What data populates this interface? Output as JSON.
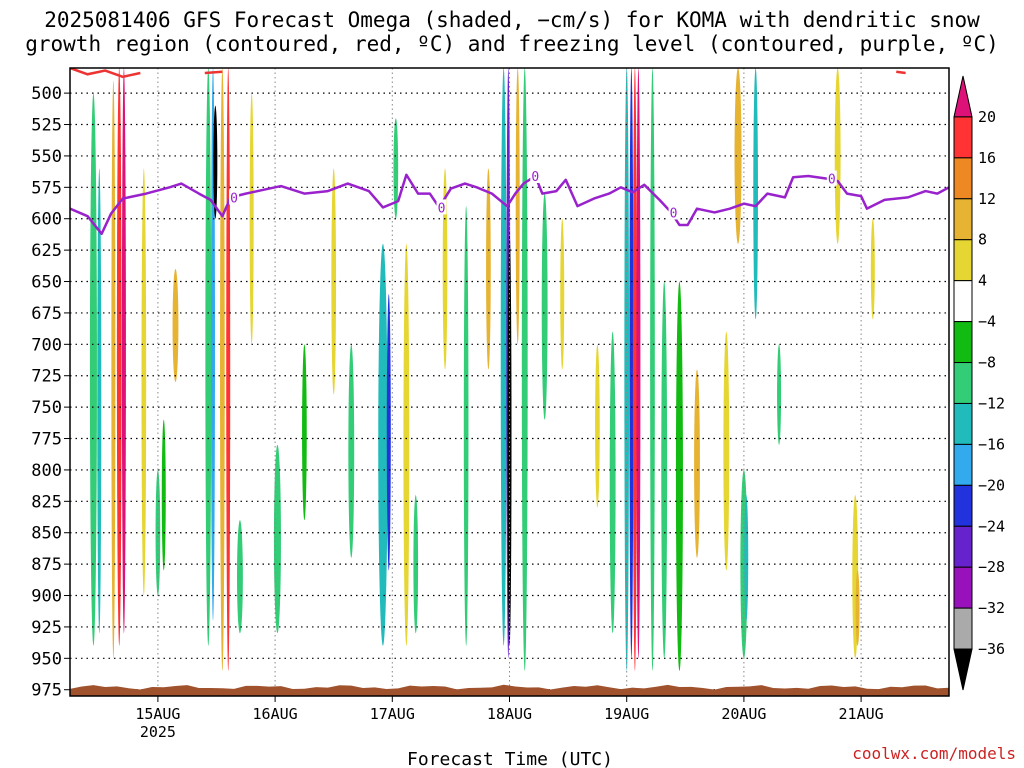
{
  "title": {
    "line1": "2025081406 GFS Forecast Omega (shaded, −cm/s) for KOMA with dendritic snow",
    "line2": "growth region (contoured, red, ºC) and freezing level (contoured, purple, ºC)"
  },
  "credit": "coolwx.com/models",
  "chart_data": {
    "type": "heatmap",
    "xlabel": "Forecast Time (UTC)",
    "ylabel": "",
    "x_ticks": [
      "15AUG",
      "16AUG",
      "17AUG",
      "18AUG",
      "19AUG",
      "20AUG",
      "21AUG"
    ],
    "x_tick_sublabel": "2025",
    "x_range_days": [
      14.25,
      21.75
    ],
    "y_ticks": [
      500,
      525,
      550,
      575,
      600,
      625,
      650,
      675,
      700,
      725,
      750,
      775,
      800,
      825,
      850,
      875,
      900,
      925,
      950,
      975
    ],
    "y_range_hpa": [
      480,
      980
    ],
    "grid": true,
    "colorbar": {
      "labels": [
        "20",
        "16",
        "12",
        "8",
        "4",
        "−4",
        "−8",
        "−12",
        "−16",
        "−20",
        "−24",
        "−28",
        "−32",
        "−36"
      ],
      "colors": [
        "#dd1177",
        "#ff3333",
        "#ee8822",
        "#e6b333",
        "#e6d633",
        "#ffffff",
        "#11bb11",
        "#33cc77",
        "#22bbbb",
        "#33aaee",
        "#2233dd",
        "#6622cc",
        "#9911bb",
        "#aaaaaa",
        "#000000"
      ]
    },
    "freezing_level": {
      "label": "0",
      "color": "#9922cc",
      "points": [
        [
          14.25,
          592
        ],
        [
          14.4,
          598
        ],
        [
          14.52,
          612
        ],
        [
          14.6,
          596
        ],
        [
          14.7,
          584
        ],
        [
          14.9,
          580
        ],
        [
          15.1,
          575
        ],
        [
          15.2,
          572
        ],
        [
          15.35,
          580
        ],
        [
          15.45,
          585
        ],
        [
          15.55,
          598
        ],
        [
          15.62,
          583
        ],
        [
          15.75,
          580
        ],
        [
          15.9,
          577
        ],
        [
          16.05,
          574
        ],
        [
          16.25,
          580
        ],
        [
          16.45,
          578
        ],
        [
          16.62,
          572
        ],
        [
          16.8,
          578
        ],
        [
          16.92,
          591
        ],
        [
          17.05,
          586
        ],
        [
          17.12,
          565
        ],
        [
          17.22,
          580
        ],
        [
          17.32,
          580
        ],
        [
          17.4,
          591
        ],
        [
          17.5,
          576
        ],
        [
          17.62,
          572
        ],
        [
          17.72,
          575
        ],
        [
          17.85,
          580
        ],
        [
          17.98,
          590
        ],
        [
          18.05,
          580
        ],
        [
          18.12,
          572
        ],
        [
          18.22,
          566
        ],
        [
          18.28,
          580
        ],
        [
          18.4,
          578
        ],
        [
          18.48,
          569
        ],
        [
          18.58,
          590
        ],
        [
          18.72,
          584
        ],
        [
          18.85,
          580
        ],
        [
          18.95,
          575
        ],
        [
          19.05,
          579
        ],
        [
          19.15,
          573
        ],
        [
          19.28,
          585
        ],
        [
          19.38,
          595
        ],
        [
          19.45,
          605
        ],
        [
          19.52,
          605
        ],
        [
          19.6,
          592
        ],
        [
          19.75,
          595
        ],
        [
          19.88,
          592
        ],
        [
          20.0,
          588
        ],
        [
          20.1,
          590
        ],
        [
          20.2,
          580
        ],
        [
          20.35,
          583
        ],
        [
          20.42,
          567
        ],
        [
          20.55,
          566
        ],
        [
          20.7,
          568
        ],
        [
          20.8,
          570
        ],
        [
          20.88,
          580
        ],
        [
          21.0,
          582
        ],
        [
          21.05,
          592
        ],
        [
          21.2,
          585
        ],
        [
          21.4,
          583
        ],
        [
          21.55,
          578
        ],
        [
          21.65,
          580
        ],
        [
          21.75,
          575
        ]
      ]
    },
    "dendritic_growth_region": {
      "color": "#ee3333",
      "segments": [
        [
          [
            14.25,
            480
          ],
          [
            14.4,
            485
          ],
          [
            14.55,
            482
          ],
          [
            14.7,
            487
          ],
          [
            14.85,
            484
          ]
        ],
        [
          [
            15.4,
            484
          ],
          [
            15.55,
            483
          ]
        ],
        [
          [
            21.3,
            483
          ],
          [
            21.38,
            484
          ]
        ]
      ]
    },
    "ground": {
      "color": "#a0522d",
      "pressure": 973
    },
    "omega_columns": [
      {
        "t": 14.45,
        "top": 500,
        "bottom": 940,
        "w": 0.06,
        "value": -8
      },
      {
        "t": 14.5,
        "top": 560,
        "bottom": 930,
        "w": 0.03,
        "value": -14
      },
      {
        "t": 14.62,
        "top": 490,
        "bottom": 950,
        "w": 0.03,
        "value": 8
      },
      {
        "t": 14.67,
        "top": 480,
        "bottom": 940,
        "w": 0.04,
        "value": 16
      },
      {
        "t": 14.71,
        "top": 480,
        "bottom": 930,
        "w": 0.02,
        "value": 20
      },
      {
        "t": 14.88,
        "top": 560,
        "bottom": 900,
        "w": 0.04,
        "value": 4
      },
      {
        "t": 15.0,
        "top": 800,
        "bottom": 900,
        "w": 0.04,
        "value": -8
      },
      {
        "t": 15.05,
        "top": 760,
        "bottom": 880,
        "w": 0.03,
        "value": -4
      },
      {
        "t": 15.15,
        "top": 640,
        "bottom": 730,
        "w": 0.05,
        "value": 8
      },
      {
        "t": 15.43,
        "top": 480,
        "bottom": 940,
        "w": 0.05,
        "value": -8
      },
      {
        "t": 15.47,
        "top": 480,
        "bottom": 920,
        "w": 0.03,
        "value": -16
      },
      {
        "t": 15.49,
        "top": 510,
        "bottom": 600,
        "w": 0.02,
        "value": -36
      },
      {
        "t": 15.55,
        "top": 480,
        "bottom": 960,
        "w": 0.04,
        "value": 8
      },
      {
        "t": 15.6,
        "top": 480,
        "bottom": 960,
        "w": 0.02,
        "value": 16
      },
      {
        "t": 15.7,
        "top": 840,
        "bottom": 930,
        "w": 0.05,
        "value": -8
      },
      {
        "t": 15.8,
        "top": 500,
        "bottom": 700,
        "w": 0.03,
        "value": 4
      },
      {
        "t": 16.02,
        "top": 780,
        "bottom": 930,
        "w": 0.06,
        "value": -8
      },
      {
        "t": 16.25,
        "top": 700,
        "bottom": 840,
        "w": 0.04,
        "value": -4
      },
      {
        "t": 16.5,
        "top": 560,
        "bottom": 740,
        "w": 0.04,
        "value": 4
      },
      {
        "t": 16.65,
        "top": 700,
        "bottom": 870,
        "w": 0.05,
        "value": -8
      },
      {
        "t": 16.92,
        "top": 620,
        "bottom": 940,
        "w": 0.08,
        "value": -12
      },
      {
        "t": 16.97,
        "top": 660,
        "bottom": 880,
        "w": 0.03,
        "value": -20
      },
      {
        "t": 17.03,
        "top": 520,
        "bottom": 600,
        "w": 0.04,
        "value": -8
      },
      {
        "t": 17.12,
        "top": 620,
        "bottom": 940,
        "w": 0.05,
        "value": 4
      },
      {
        "t": 17.2,
        "top": 820,
        "bottom": 930,
        "w": 0.04,
        "value": -8
      },
      {
        "t": 17.45,
        "top": 560,
        "bottom": 720,
        "w": 0.04,
        "value": 4
      },
      {
        "t": 17.63,
        "top": 590,
        "bottom": 940,
        "w": 0.04,
        "value": -8
      },
      {
        "t": 17.82,
        "top": 560,
        "bottom": 720,
        "w": 0.04,
        "value": 8
      },
      {
        "t": 17.95,
        "top": 480,
        "bottom": 940,
        "w": 0.05,
        "value": -12
      },
      {
        "t": 17.99,
        "top": 480,
        "bottom": 950,
        "w": 0.03,
        "value": -24
      },
      {
        "t": 18.0,
        "top": 610,
        "bottom": 940,
        "w": 0.02,
        "value": -36
      },
      {
        "t": 18.07,
        "top": 480,
        "bottom": 700,
        "w": 0.03,
        "value": 8
      },
      {
        "t": 18.13,
        "top": 480,
        "bottom": 960,
        "w": 0.05,
        "value": -8
      },
      {
        "t": 18.3,
        "top": 580,
        "bottom": 760,
        "w": 0.05,
        "value": -8
      },
      {
        "t": 18.45,
        "top": 600,
        "bottom": 720,
        "w": 0.03,
        "value": 4
      },
      {
        "t": 18.75,
        "top": 700,
        "bottom": 830,
        "w": 0.04,
        "value": 4
      },
      {
        "t": 18.88,
        "top": 690,
        "bottom": 930,
        "w": 0.05,
        "value": -8
      },
      {
        "t": 19.0,
        "top": 480,
        "bottom": 960,
        "w": 0.04,
        "value": -12
      },
      {
        "t": 19.04,
        "top": 480,
        "bottom": 950,
        "w": 0.02,
        "value": -20
      },
      {
        "t": 19.07,
        "top": 480,
        "bottom": 960,
        "w": 0.03,
        "value": 16
      },
      {
        "t": 19.1,
        "top": 480,
        "bottom": 950,
        "w": 0.02,
        "value": 20
      },
      {
        "t": 19.22,
        "top": 480,
        "bottom": 960,
        "w": 0.04,
        "value": -8
      },
      {
        "t": 19.32,
        "top": 650,
        "bottom": 950,
        "w": 0.05,
        "value": -8
      },
      {
        "t": 19.45,
        "top": 650,
        "bottom": 960,
        "w": 0.06,
        "value": -4
      },
      {
        "t": 19.6,
        "top": 720,
        "bottom": 870,
        "w": 0.05,
        "value": 8
      },
      {
        "t": 19.85,
        "top": 690,
        "bottom": 880,
        "w": 0.05,
        "value": 4
      },
      {
        "t": 19.95,
        "top": 480,
        "bottom": 620,
        "w": 0.06,
        "value": 8
      },
      {
        "t": 20.0,
        "top": 800,
        "bottom": 950,
        "w": 0.06,
        "value": -8
      },
      {
        "t": 20.02,
        "top": 820,
        "bottom": 920,
        "w": 0.03,
        "value": -14
      },
      {
        "t": 20.1,
        "top": 480,
        "bottom": 680,
        "w": 0.04,
        "value": -12
      },
      {
        "t": 20.3,
        "top": 700,
        "bottom": 780,
        "w": 0.03,
        "value": -8
      },
      {
        "t": 20.8,
        "top": 480,
        "bottom": 620,
        "w": 0.05,
        "value": 4
      },
      {
        "t": 20.95,
        "top": 820,
        "bottom": 950,
        "w": 0.05,
        "value": 4
      },
      {
        "t": 20.97,
        "top": 880,
        "bottom": 940,
        "w": 0.02,
        "value": 8
      },
      {
        "t": 21.1,
        "top": 600,
        "bottom": 680,
        "w": 0.03,
        "value": 4
      }
    ]
  }
}
